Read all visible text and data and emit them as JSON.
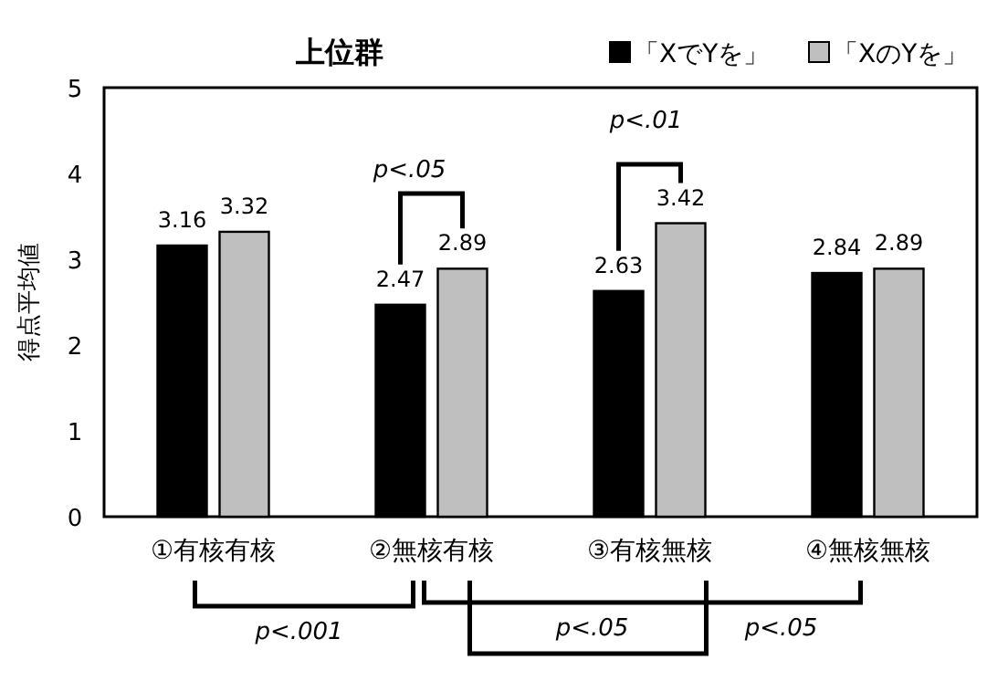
{
  "chart_data": {
    "type": "bar",
    "title": "上位群",
    "ylabel": "得点平均値",
    "categories": [
      "①有核有核",
      "②無核有核",
      "③有核無核",
      "④無核無核"
    ],
    "series": [
      {
        "name": "「XでYを」",
        "color": "#000000",
        "values": [
          3.16,
          2.47,
          2.63,
          2.84
        ]
      },
      {
        "name": "「XのYを」",
        "color": "#bfbfbf",
        "values": [
          3.32,
          2.89,
          3.42,
          2.89
        ]
      }
    ],
    "ylim": [
      0,
      5
    ],
    "yticks": [
      0,
      1,
      2,
      3,
      4,
      5
    ],
    "grid": false,
    "legend": "top right",
    "data_labels": true,
    "annotations": [
      "p<.05",
      "p<.01",
      "p<.001",
      "p<.05",
      "p<.05"
    ]
  }
}
